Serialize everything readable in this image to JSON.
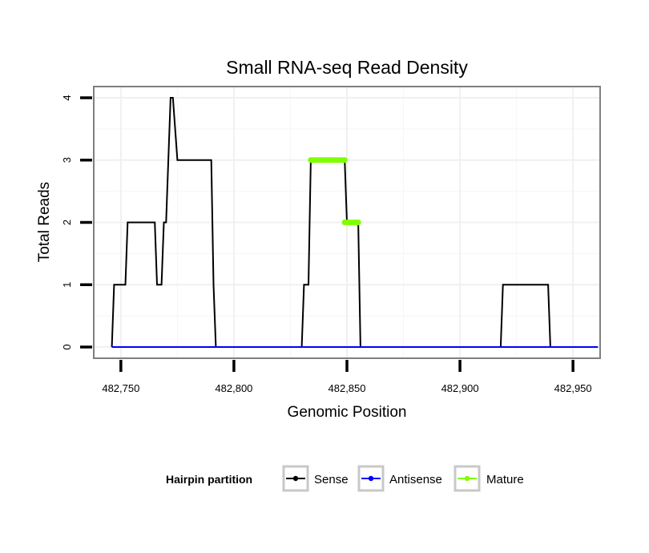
{
  "chart_data": {
    "type": "line",
    "title": "Small RNA-seq Read Density",
    "xlabel": "Genomic Position",
    "ylabel": "Total Reads",
    "xlim": [
      482738,
      482962
    ],
    "ylim": [
      -0.18,
      4.18
    ],
    "x_ticks": [
      482750,
      482800,
      482850,
      482900,
      482950
    ],
    "x_tick_labels": [
      "482,750",
      "482,800",
      "482,850",
      "482,900",
      "482,950"
    ],
    "y_ticks": [
      0,
      1,
      2,
      3,
      4
    ],
    "y_tick_labels": [
      "0",
      "1",
      "2",
      "3",
      "4"
    ],
    "grid": true,
    "legend": {
      "title": "Hairpin partition",
      "position": "bottom",
      "entries": [
        "Sense",
        "Antisense",
        "Mature"
      ]
    },
    "series": [
      {
        "name": "Sense",
        "color": "#000000",
        "x": [
          482746,
          482747,
          482752,
          482753,
          482765,
          482766,
          482768,
          482769,
          482770,
          482772,
          482773,
          482775,
          482776,
          482790,
          482791,
          482792,
          482830,
          482831,
          482833,
          482834,
          482849,
          482850,
          482855,
          482856,
          482918,
          482919,
          482939,
          482940,
          482961
        ],
        "y": [
          0,
          1,
          1,
          2,
          2,
          1,
          1,
          2,
          2,
          4,
          4,
          3,
          3,
          3,
          1,
          0,
          0,
          1,
          1,
          3,
          3,
          2,
          2,
          0,
          0,
          1,
          1,
          0,
          0
        ]
      },
      {
        "name": "Antisense",
        "color": "#0000ff",
        "x": [
          482746,
          482961
        ],
        "y": [
          0,
          0
        ]
      },
      {
        "name": "Mature",
        "color": "#7fff00",
        "segments": [
          {
            "x": [
              482834,
              482849
            ],
            "y": [
              3,
              3
            ]
          },
          {
            "x": [
              482849,
              482855
            ],
            "y": [
              2,
              2
            ]
          }
        ]
      }
    ]
  }
}
